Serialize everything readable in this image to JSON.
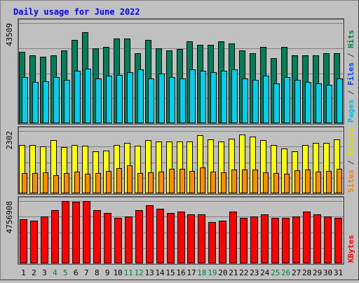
{
  "chart_data": {
    "type": "bar",
    "title": "Daily usage for June 2022",
    "categories": [
      "1",
      "2",
      "3",
      "4",
      "5",
      "6",
      "7",
      "8",
      "9",
      "10",
      "11",
      "12",
      "13",
      "14",
      "15",
      "16",
      "17",
      "18",
      "19",
      "20",
      "21",
      "22",
      "23",
      "24",
      "25",
      "26",
      "27",
      "28",
      "29",
      "30",
      "31"
    ],
    "weekend_days": [
      "4",
      "5",
      "11",
      "12",
      "18",
      "19",
      "25",
      "26"
    ],
    "panels": [
      {
        "id": "hits-files-pages",
        "max_label": "43509",
        "ymax": 43509,
        "right_labels": [
          {
            "text": "Pages",
            "color": "#00c0e0"
          },
          {
            "text": " / ",
            "color": "#404040"
          },
          {
            "text": "Files",
            "color": "#0040ff"
          },
          {
            "text": " / ",
            "color": "#404040"
          },
          {
            "text": "Hits",
            "color": "#008040"
          }
        ],
        "series": [
          {
            "name": "Hits",
            "color": "#00805a",
            "values": [
              31050,
              29475,
              28925,
              29475,
              31600,
              36300,
              39600,
              32700,
              33250,
              36850,
              36850,
              30500,
              36300,
              32700,
              31600,
              32150,
              35750,
              34100,
              34100,
              35750,
              34650,
              31600,
              30500,
              33250,
              28400,
              33250,
              29475,
              29475,
              29475,
              30500,
              30500
            ]
          },
          {
            "name": "Files",
            "color": "#0040ff",
            "values": [
              16500,
              17000,
              16000,
              16800,
              17700,
              19500,
              20000,
              17800,
              18000,
              19100,
              19800,
              16200,
              19100,
              17500,
              16500,
              16700,
              18900,
              18300,
              18300,
              19100,
              18000,
              17000,
              16200,
              17500,
              15500,
              17800,
              15800,
              15600,
              15800,
              16500,
              16500
            ]
          },
          {
            "name": "Pages",
            "color": "#00d0f0",
            "values": [
              20000,
              17900,
              18400,
              20000,
              18900,
              22700,
              23800,
              19500,
              20600,
              21100,
              22200,
              23300,
              19500,
              21700,
              20000,
              19500,
              23300,
              22700,
              22200,
              22700,
              23300,
              19500,
              18900,
              20600,
              17300,
              20000,
              18900,
              17900,
              17300,
              16800,
              19500
            ]
          }
        ]
      },
      {
        "id": "visits-sites",
        "max_label": "2302",
        "ymax": 2302,
        "right_labels": [
          {
            "text": "Sites",
            "color": "#ff8000"
          },
          {
            "text": " / ",
            "color": "#404040"
          },
          {
            "text": "Visits",
            "color": "#e0e000"
          }
        ],
        "series": [
          {
            "name": "Visits",
            "color": "#ffff00",
            "values": [
              1790,
              1790,
              1745,
              1960,
              1700,
              1785,
              1765,
              1545,
              1585,
              1790,
              1855,
              1750,
              1960,
              1920,
              1920,
              1920,
              1920,
              2140,
              1980,
              1920,
              2030,
              2170,
              2100,
              1960,
              1790,
              1660,
              1545,
              1790,
              1855,
              1855,
              1980
            ]
          },
          {
            "name": "Sites",
            "color": "#ff8c00",
            "values": [
              745,
              745,
              780,
              660,
              755,
              795,
              715,
              755,
              825,
              940,
              1040,
              745,
              765,
              800,
              910,
              910,
              835,
              955,
              800,
              785,
              870,
              870,
              870,
              780,
              745,
              715,
              865,
              870,
              800,
              830,
              915
            ]
          }
        ]
      },
      {
        "id": "kbytes",
        "max_label": "4756908",
        "ymax": 4756908,
        "right_labels": [
          {
            "text": "KBytes",
            "color": "#ff0000"
          }
        ],
        "series": [
          {
            "name": "KBytes",
            "color": "#ff0000",
            "values": [
              3380000,
              3280000,
              3600000,
              4060000,
              4756908,
              4700000,
              4756908,
              4060000,
              3830000,
              3490000,
              3600000,
              4060000,
              4410000,
              4170000,
              3830000,
              3940000,
              3720000,
              3720000,
              3170000,
              3280000,
              3940000,
              3490000,
              3600000,
              3720000,
              3490000,
              3490000,
              3600000,
              3940000,
              3720000,
              3600000,
              3490000
            ]
          }
        ]
      }
    ]
  }
}
